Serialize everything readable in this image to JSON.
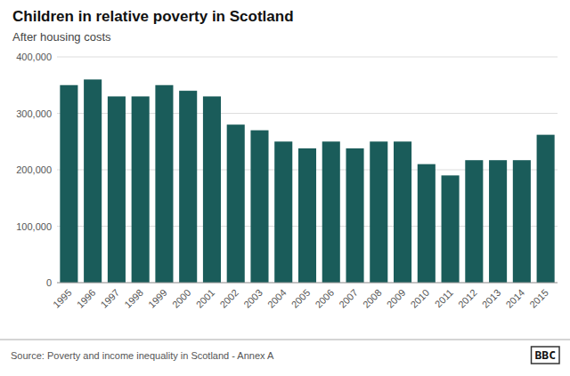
{
  "chart_data": {
    "type": "bar",
    "title": "Children in relative poverty in Scotland",
    "subtitle": "After housing costs",
    "source": "Source: Poverty and income inequality in Scotland - Annex A",
    "annotations": [
      "BBC"
    ],
    "categories": [
      "1995",
      "1996",
      "1997",
      "1998",
      "1999",
      "2000",
      "2001",
      "2002",
      "2003",
      "2004",
      "2005",
      "2006",
      "2007",
      "2008",
      "2009",
      "2010",
      "2011",
      "2012",
      "2013",
      "2014",
      "2015"
    ],
    "values": [
      350000,
      360000,
      330000,
      330000,
      350000,
      340000,
      330000,
      280000,
      270000,
      250000,
      238000,
      250000,
      238000,
      250000,
      250000,
      210000,
      190000,
      217000,
      217000,
      217000,
      262000
    ],
    "color": "#1a5c5a",
    "ylim": [
      0,
      400000
    ],
    "yticks": [
      0,
      {
        "value": 100000,
        "label": "100,000"
      },
      {
        "value": 200000,
        "label": "200,000"
      },
      {
        "value": 300000,
        "label": "300,000"
      },
      {
        "value": 400000,
        "label": "400,000"
      }
    ],
    "grid": true
  }
}
